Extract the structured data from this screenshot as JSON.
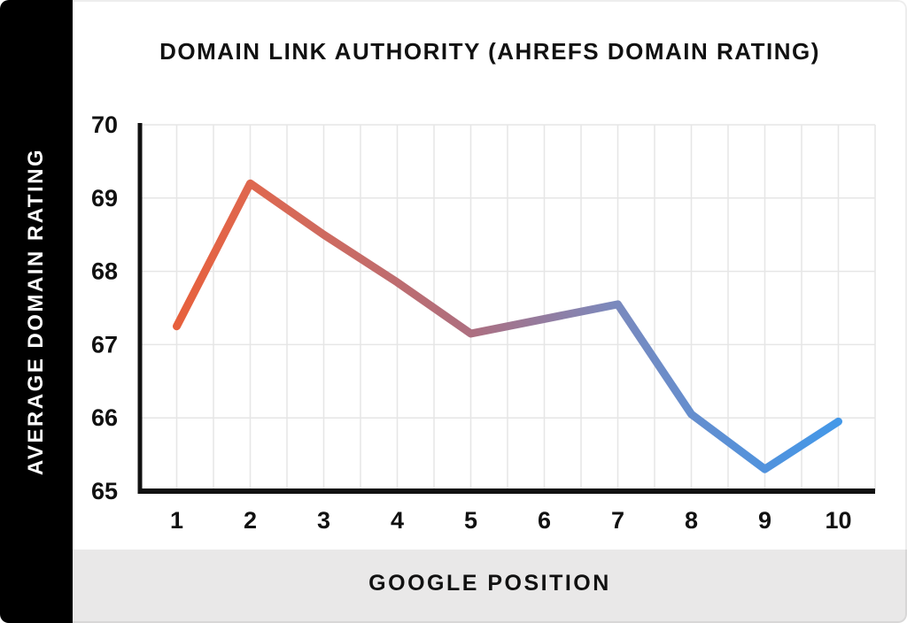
{
  "chart_data": {
    "type": "line",
    "title": "DOMAIN LINK AUTHORITY (AHREFS DOMAIN RATING)",
    "xlabel": "GOOGLE POSITION",
    "ylabel": "AVERAGE DOMAIN RATING",
    "x": [
      1,
      2,
      3,
      4,
      5,
      6,
      7,
      8,
      9,
      10
    ],
    "values": [
      67.25,
      69.2,
      68.5,
      67.85,
      67.15,
      67.35,
      67.55,
      66.05,
      65.3,
      65.95
    ],
    "x_tick_labels": [
      "1",
      "2",
      "3",
      "4",
      "5",
      "6",
      "7",
      "8",
      "9",
      "10"
    ],
    "y_ticks": [
      65,
      66,
      67,
      68,
      69,
      70
    ],
    "ylim": [
      65,
      70
    ],
    "xlim": [
      0.5,
      10.5
    ],
    "grid": true,
    "x_grid_step": 0.5,
    "legend_position": "none",
    "line_gradient": [
      {
        "offset": "0%",
        "color": "#e7603c"
      },
      {
        "offset": "12%",
        "color": "#de6850"
      },
      {
        "offset": "45%",
        "color": "#ac6f81"
      },
      {
        "offset": "66%",
        "color": "#7b89bd"
      },
      {
        "offset": "88%",
        "color": "#5292dc"
      },
      {
        "offset": "100%",
        "color": "#4498e8"
      }
    ]
  },
  "colors": {
    "background": "#ffffff",
    "sidebar_bg": "#000000",
    "bottombar_bg": "#e9e8e8",
    "grid": "#e6e6e6",
    "axis": "#111111",
    "tick_text": "#111111",
    "ylabel_text": "#ffffff"
  }
}
